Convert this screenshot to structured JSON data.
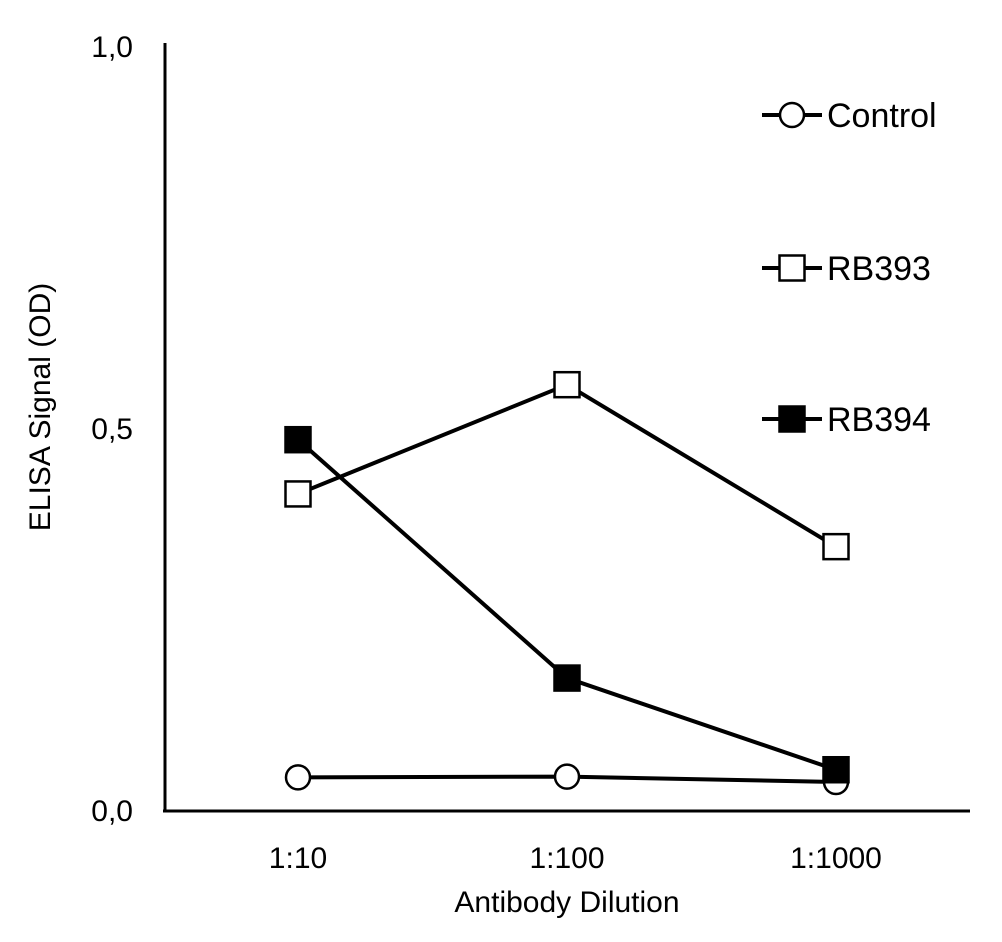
{
  "chart_data": {
    "type": "line",
    "title": "",
    "xlabel": "Antibody Dilution",
    "ylabel": "ELISA Signal (OD)",
    "categories": [
      "1:10",
      "1:100",
      "1:1000"
    ],
    "ylim": [
      0,
      1
    ],
    "yticks": [
      {
        "value": 0,
        "label": "0,0"
      },
      {
        "value": 0.5,
        "label": "0,5"
      },
      {
        "value": 1,
        "label": "1,0"
      }
    ],
    "grid": false,
    "legend_position": "top-right",
    "series": [
      {
        "name": "Control",
        "marker": "circle-open",
        "values": [
          0.044,
          0.045,
          0.038
        ]
      },
      {
        "name": "RB393",
        "marker": "square-open",
        "values": [
          0.415,
          0.558,
          0.346
        ]
      },
      {
        "name": "RB394",
        "marker": "square-filled",
        "values": [
          0.486,
          0.174,
          0.054
        ]
      }
    ],
    "colors": {
      "line": "#000000",
      "marker_open_fill": "#ffffff",
      "marker_filled": "#000000"
    }
  }
}
